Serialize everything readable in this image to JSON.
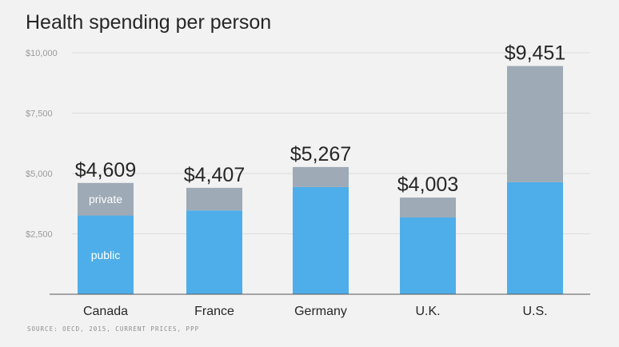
{
  "title": "Health spending per person",
  "source": "SOURCE: OECD, 2015, CURRENT PRICES, PPP",
  "chart_data": {
    "type": "bar",
    "stacked": true,
    "categories": [
      "Canada",
      "France",
      "Germany",
      "U.K.",
      "U.S."
    ],
    "series": [
      {
        "name": "public",
        "values": [
          3260,
          3470,
          4440,
          3180,
          4640
        ],
        "color": "#4eaee9"
      },
      {
        "name": "private",
        "values": [
          1349,
          937,
          827,
          823,
          4811
        ],
        "color": "#9eaab6"
      }
    ],
    "totals": [
      4609,
      4407,
      5267,
      4003,
      9451
    ],
    "total_labels": [
      "$4,609",
      "$4,407",
      "$5,267",
      "$4,003",
      "$9,451"
    ],
    "ylim": [
      0,
      10000
    ],
    "yticks": [
      2500,
      5000,
      7500,
      10000
    ],
    "ytick_labels": [
      "$2,500",
      "$5,000",
      "$7,500",
      "$10,000"
    ],
    "grid": true,
    "xlabel": "",
    "ylabel": "",
    "inline_labels": {
      "category": "Canada",
      "public": "public",
      "private": "private"
    }
  }
}
